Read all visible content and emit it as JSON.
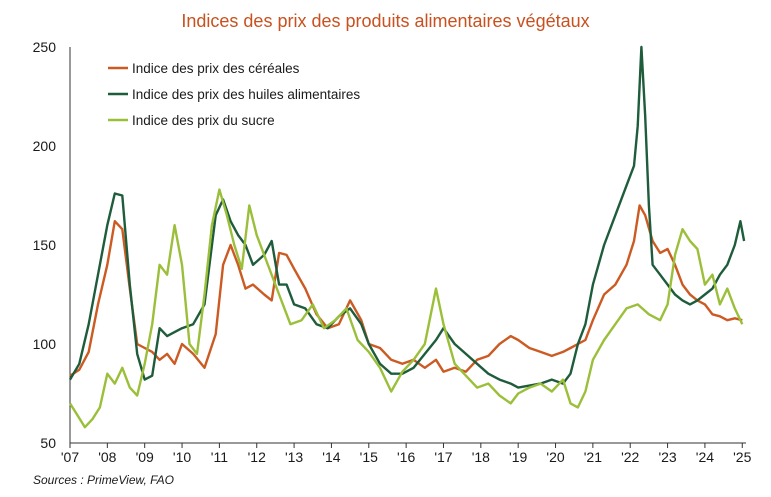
{
  "chart_data": {
    "type": "line",
    "title": "Indices des prix des produits alimentaires végétaux",
    "xlabel": "",
    "ylabel": "",
    "ylim": [
      50,
      250
    ],
    "yticks": [
      "250",
      "200",
      "150",
      "100",
      "50"
    ],
    "xticks": [
      "'07",
      "'08",
      "'09",
      "'10",
      "'11",
      "'12",
      "'13",
      "'14",
      "'15",
      "'16",
      "'17",
      "'18",
      "'19",
      "'20",
      "'21",
      "'22",
      "'23",
      "'24",
      "'25"
    ],
    "xrange": [
      2007.0,
      2025.1
    ],
    "grid": false,
    "legend_position": "top-left",
    "series": [
      {
        "name": "Indice des prix des céréales",
        "color": "#cc5a23",
        "x": [
          2007.0,
          2007.25,
          2007.5,
          2007.75,
          2008.0,
          2008.2,
          2008.4,
          2008.6,
          2008.8,
          2009.0,
          2009.2,
          2009.4,
          2009.6,
          2009.8,
          2010.0,
          2010.3,
          2010.6,
          2010.9,
          2011.1,
          2011.3,
          2011.5,
          2011.7,
          2011.9,
          2012.2,
          2012.4,
          2012.6,
          2012.8,
          2013.0,
          2013.3,
          2013.6,
          2013.9,
          2014.2,
          2014.5,
          2014.8,
          2015.0,
          2015.3,
          2015.6,
          2015.9,
          2016.2,
          2016.5,
          2016.8,
          2017.0,
          2017.3,
          2017.6,
          2017.9,
          2018.2,
          2018.5,
          2018.8,
          2019.0,
          2019.3,
          2019.6,
          2019.9,
          2020.2,
          2020.4,
          2020.6,
          2020.8,
          2021.0,
          2021.3,
          2021.6,
          2021.9,
          2022.1,
          2022.25,
          2022.4,
          2022.6,
          2022.8,
          2023.0,
          2023.2,
          2023.4,
          2023.6,
          2023.8,
          2024.0,
          2024.2,
          2024.4,
          2024.6,
          2024.8,
          2025.0
        ],
        "values": [
          84,
          87,
          96,
          120,
          140,
          162,
          158,
          128,
          100,
          98,
          96,
          92,
          95,
          90,
          100,
          95,
          88,
          105,
          140,
          150,
          140,
          128,
          130,
          125,
          122,
          146,
          145,
          138,
          128,
          115,
          108,
          110,
          122,
          112,
          100,
          98,
          92,
          90,
          92,
          88,
          92,
          86,
          88,
          86,
          92,
          94,
          100,
          104,
          102,
          98,
          96,
          94,
          96,
          98,
          100,
          102,
          112,
          125,
          130,
          140,
          152,
          170,
          165,
          152,
          146,
          148,
          140,
          130,
          125,
          122,
          120,
          115,
          114,
          112,
          113,
          112
        ]
      },
      {
        "name": "Indice des prix des huiles alimentaires",
        "color": "#1e5c3c",
        "x": [
          2007.0,
          2007.25,
          2007.5,
          2007.75,
          2008.0,
          2008.2,
          2008.4,
          2008.6,
          2008.8,
          2009.0,
          2009.2,
          2009.4,
          2009.6,
          2009.8,
          2010.0,
          2010.3,
          2010.6,
          2010.9,
          2011.1,
          2011.3,
          2011.5,
          2011.7,
          2011.9,
          2012.2,
          2012.4,
          2012.6,
          2012.8,
          2013.0,
          2013.3,
          2013.6,
          2013.9,
          2014.2,
          2014.5,
          2014.8,
          2015.0,
          2015.3,
          2015.6,
          2015.9,
          2016.2,
          2016.5,
          2016.8,
          2017.0,
          2017.3,
          2017.6,
          2017.9,
          2018.2,
          2018.5,
          2018.8,
          2019.0,
          2019.3,
          2019.6,
          2019.9,
          2020.2,
          2020.4,
          2020.6,
          2020.8,
          2021.0,
          2021.3,
          2021.6,
          2021.9,
          2022.1,
          2022.2,
          2022.3,
          2022.4,
          2022.5,
          2022.6,
          2022.8,
          2023.0,
          2023.2,
          2023.4,
          2023.6,
          2023.8,
          2024.0,
          2024.2,
          2024.4,
          2024.6,
          2024.8,
          2024.95,
          2025.05
        ],
        "values": [
          82,
          90,
          110,
          135,
          160,
          176,
          175,
          130,
          95,
          82,
          84,
          108,
          104,
          106,
          108,
          110,
          120,
          165,
          173,
          162,
          155,
          150,
          140,
          145,
          152,
          130,
          130,
          120,
          118,
          110,
          108,
          114,
          118,
          110,
          100,
          90,
          85,
          85,
          88,
          95,
          102,
          108,
          100,
          95,
          90,
          85,
          82,
          80,
          78,
          79,
          80,
          82,
          80,
          85,
          100,
          110,
          130,
          150,
          165,
          180,
          190,
          210,
          250,
          215,
          170,
          140,
          135,
          130,
          125,
          122,
          120,
          122,
          125,
          128,
          135,
          140,
          150,
          162,
          152
        ]
      },
      {
        "name": "Indice des prix du sucre",
        "color": "#9bbf3a",
        "x": [
          2007.0,
          2007.2,
          2007.4,
          2007.6,
          2007.8,
          2008.0,
          2008.2,
          2008.4,
          2008.6,
          2008.8,
          2009.0,
          2009.2,
          2009.4,
          2009.6,
          2009.8,
          2010.0,
          2010.2,
          2010.4,
          2010.6,
          2010.8,
          2011.0,
          2011.2,
          2011.4,
          2011.6,
          2011.8,
          2012.0,
          2012.3,
          2012.6,
          2012.9,
          2013.2,
          2013.5,
          2013.8,
          2014.1,
          2014.4,
          2014.7,
          2015.0,
          2015.3,
          2015.6,
          2015.9,
          2016.2,
          2016.5,
          2016.8,
          2017.0,
          2017.3,
          2017.6,
          2017.9,
          2018.2,
          2018.5,
          2018.8,
          2019.0,
          2019.3,
          2019.6,
          2019.9,
          2020.2,
          2020.4,
          2020.6,
          2020.8,
          2021.0,
          2021.3,
          2021.6,
          2021.9,
          2022.2,
          2022.5,
          2022.8,
          2023.0,
          2023.2,
          2023.4,
          2023.6,
          2023.8,
          2024.0,
          2024.2,
          2024.4,
          2024.6,
          2024.8,
          2025.0
        ],
        "values": [
          70,
          64,
          58,
          62,
          68,
          85,
          80,
          88,
          78,
          74,
          90,
          110,
          140,
          135,
          160,
          140,
          100,
          95,
          125,
          160,
          178,
          165,
          150,
          138,
          170,
          155,
          140,
          125,
          110,
          112,
          120,
          108,
          112,
          118,
          102,
          96,
          88,
          76,
          86,
          92,
          100,
          128,
          110,
          90,
          84,
          78,
          80,
          74,
          70,
          75,
          78,
          80,
          76,
          82,
          70,
          68,
          76,
          92,
          102,
          110,
          118,
          120,
          115,
          112,
          120,
          145,
          158,
          152,
          148,
          130,
          135,
          120,
          128,
          118,
          110
        ]
      }
    ]
  },
  "source": "Sources : PrimeView, FAO"
}
